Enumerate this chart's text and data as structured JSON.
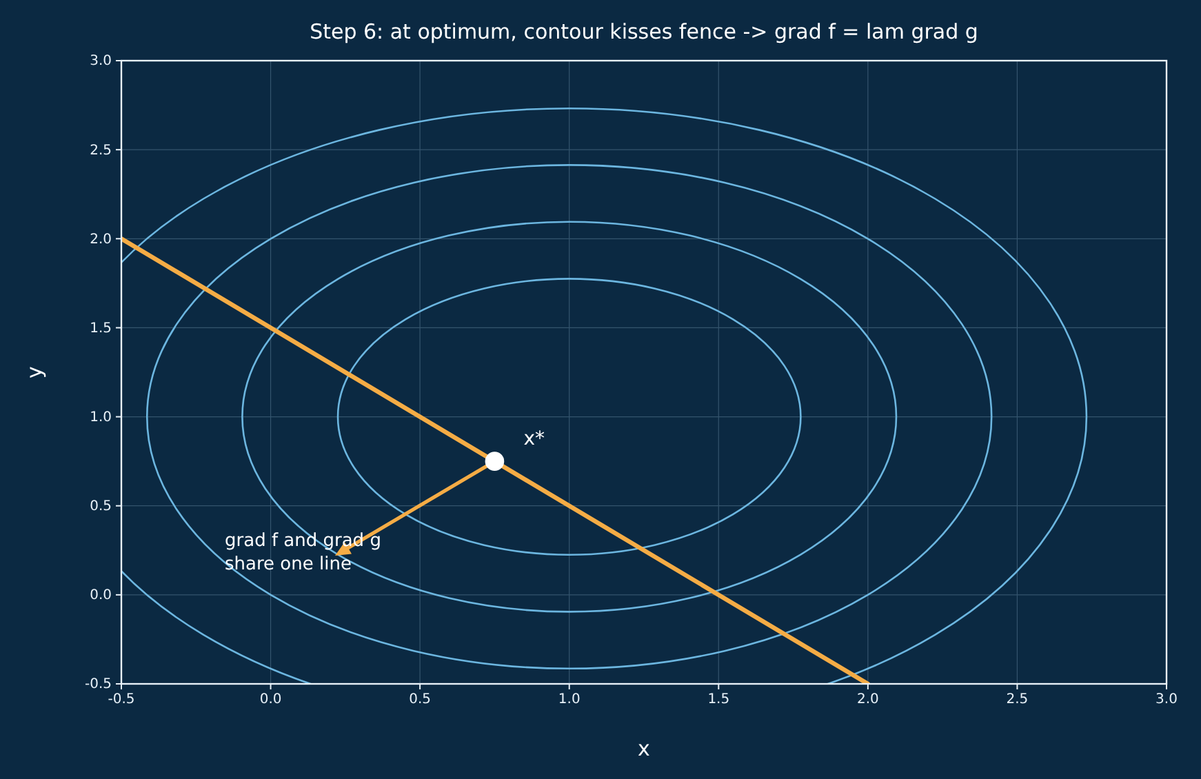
{
  "chart_data": {
    "type": "line",
    "title": "Step 6: at optimum, contour kisses fence -> grad f = lam grad g",
    "xlabel": "x",
    "ylabel": "y",
    "xlim": [
      -0.5,
      3.0
    ],
    "ylim": [
      -0.5,
      3.0
    ],
    "xticks": [
      -0.5,
      {
        "value": 0,
        "label": "0.0"
      },
      0.5,
      {
        "value": 1,
        "label": "1.0"
      },
      1.5,
      {
        "value": 2,
        "label": "2.0"
      },
      2.5,
      {
        "value": 3,
        "label": "3.0"
      }
    ],
    "yticks": [
      -0.5,
      {
        "value": 0,
        "label": "0.0"
      },
      0.5,
      {
        "value": 1,
        "label": "1.0"
      },
      1.5,
      {
        "value": 2,
        "label": "2.0"
      },
      2.5,
      {
        "value": 3,
        "label": "3.0"
      }
    ],
    "grid": true,
    "marker": "none",
    "line_style": "solid",
    "series": [
      {
        "color": "#f5ac45",
        "x": [
          -0.5,
          2.0
        ],
        "values": [
          2.0,
          -0.5
        ]
      },
      {
        "type": "scatter",
        "color": "#ffffff",
        "marker": "circle",
        "x": [
          0.75
        ],
        "values": [
          0.75
        ]
      }
    ],
    "annotations": [
      {
        "text": "x*",
        "x": 0.75,
        "y": 0.75
      },
      {
        "text": "grad f and grad g\nshare one line",
        "x": 0.75,
        "y": 0.75
      }
    ]
  }
}
